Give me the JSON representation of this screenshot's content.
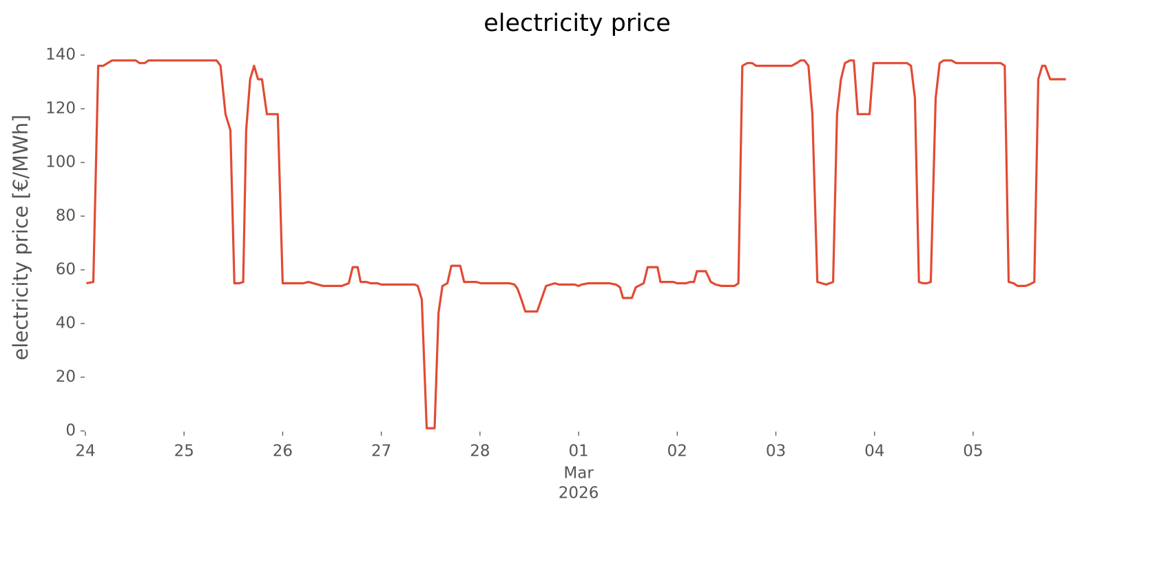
{
  "chart_data": {
    "type": "line",
    "title": "electricity price",
    "ylabel": "electricity price [€/MWh]",
    "month_label": "Mar",
    "year_label": "2026",
    "color": "#E24A33",
    "grid": false,
    "xlim": [
      0,
      9.95
    ],
    "ylim": [
      0,
      140
    ],
    "xticks": [
      {
        "value": 0,
        "label": "24"
      },
      {
        "value": 1,
        "label": "25"
      },
      {
        "value": 2,
        "label": "26"
      },
      {
        "value": 3,
        "label": "27"
      },
      {
        "value": 4,
        "label": "28"
      },
      {
        "value": 5,
        "label": "01"
      },
      {
        "value": 6,
        "label": "02"
      },
      {
        "value": 7,
        "label": "03"
      },
      {
        "value": 8,
        "label": "04"
      },
      {
        "value": 9,
        "label": "05"
      }
    ],
    "yticks": [
      0,
      20,
      40,
      60,
      80,
      100,
      120,
      140
    ],
    "x": [
      0.01,
      0.08,
      0.13,
      0.18,
      0.27,
      0.51,
      0.55,
      0.6,
      0.64,
      1.33,
      1.37,
      1.42,
      1.47,
      1.51,
      1.56,
      1.6,
      1.63,
      1.67,
      1.71,
      1.75,
      1.79,
      1.84,
      1.95,
      2.0,
      2.21,
      2.26,
      2.36,
      2.41,
      2.6,
      2.67,
      2.71,
      2.76,
      2.79,
      2.85,
      2.89,
      2.96,
      3.0,
      3.34,
      3.37,
      3.41,
      3.46,
      3.54,
      3.58,
      3.62,
      3.67,
      3.71,
      3.8,
      3.84,
      3.96,
      4.01,
      4.3,
      4.35,
      4.38,
      4.42,
      4.46,
      4.58,
      4.67,
      4.76,
      4.8,
      4.96,
      5.0,
      5.03,
      5.1,
      5.31,
      5.38,
      5.42,
      5.45,
      5.54,
      5.58,
      5.66,
      5.7,
      5.8,
      5.83,
      5.96,
      6.0,
      6.09,
      6.13,
      6.17,
      6.2,
      6.29,
      6.34,
      6.39,
      6.45,
      6.58,
      6.62,
      6.66,
      6.71,
      6.76,
      6.8,
      7.16,
      7.21,
      7.25,
      7.29,
      7.33,
      7.37,
      7.42,
      7.51,
      7.58,
      7.62,
      7.66,
      7.7,
      7.75,
      7.79,
      7.83,
      7.95,
      7.99,
      8.33,
      8.37,
      8.41,
      8.45,
      8.49,
      8.53,
      8.57,
      8.62,
      8.66,
      8.7,
      8.78,
      8.83,
      9.28,
      9.32,
      9.36,
      9.41,
      9.45,
      9.53,
      9.57,
      9.62,
      9.66,
      9.7,
      9.73,
      9.78,
      9.94
    ],
    "values": [
      55,
      55.5,
      136,
      136,
      138,
      138,
      137,
      137,
      138,
      138,
      136,
      118,
      112,
      55,
      55,
      55.5,
      112,
      131,
      136,
      131,
      131,
      118,
      118,
      55,
      55,
      55.5,
      54.5,
      54,
      54,
      55,
      61,
      61,
      55.5,
      55.5,
      55,
      55,
      54.5,
      54.5,
      54,
      49,
      1,
      1,
      44,
      54,
      55,
      61.5,
      61.5,
      55.5,
      55.5,
      55,
      55,
      54.5,
      53,
      49,
      44.5,
      44.5,
      54,
      55,
      54.5,
      54.5,
      54,
      54.5,
      55,
      55,
      54.5,
      53.5,
      49.5,
      49.5,
      53.5,
      55,
      61,
      61,
      55.5,
      55.5,
      55,
      55,
      55.5,
      55.5,
      59.5,
      59.5,
      55.5,
      54.5,
      54,
      54,
      55,
      136,
      137,
      137,
      136,
      136,
      137,
      138,
      138,
      136,
      118,
      55.5,
      54.5,
      55.5,
      118,
      131,
      137,
      138,
      138,
      118,
      118,
      137,
      137,
      136,
      124,
      55.5,
      55,
      55,
      55.5,
      124,
      137,
      138,
      138,
      137,
      137,
      136,
      55.5,
      55,
      54,
      54,
      54.5,
      55.5,
      131,
      136,
      136,
      131,
      131
    ]
  }
}
